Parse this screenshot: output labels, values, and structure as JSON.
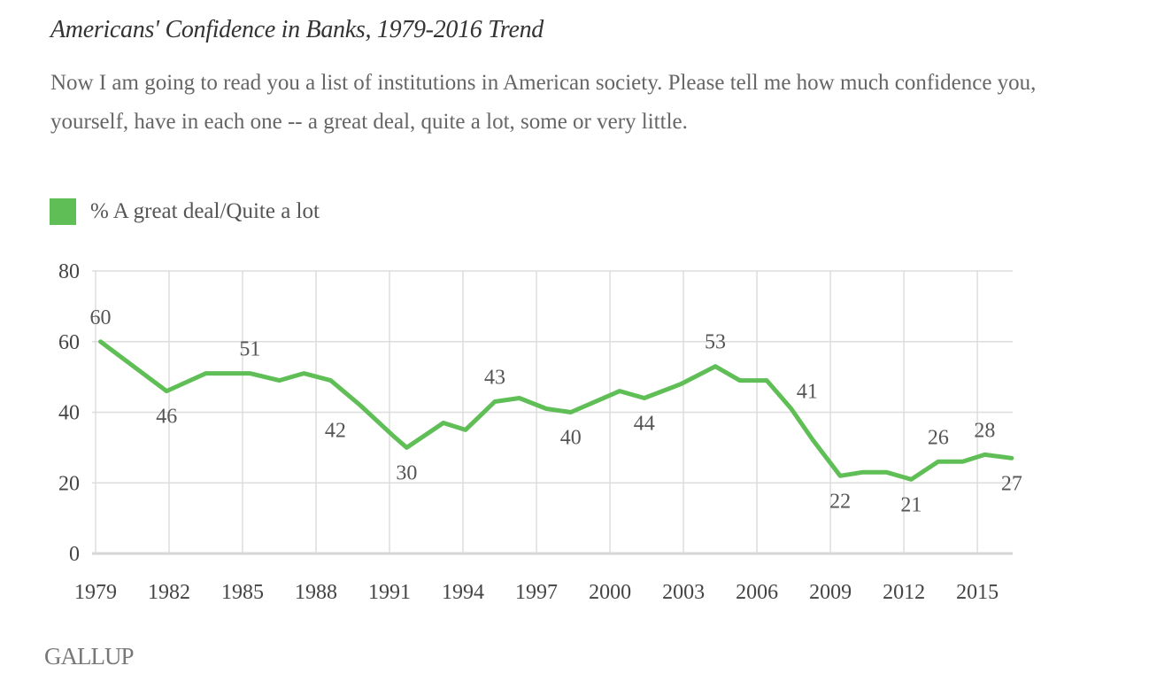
{
  "header": {
    "title": "Americans' Confidence in Banks, 1979-2016 Trend",
    "subtitle": "Now I am going to read you a list of institutions in American society. Please tell me how much confidence you, yourself, have in each one -- a great deal, quite a lot, some or very little."
  },
  "legend": {
    "label": "% A great deal/Quite a lot",
    "color": "#5fbf56"
  },
  "footer": {
    "logo": "GALLUP"
  },
  "chart_data": {
    "type": "line",
    "title": "Americans' Confidence in Banks, 1979-2016 Trend",
    "xlabel": "",
    "ylabel": "",
    "xlim": [
      1979,
      2016.5
    ],
    "ylim": [
      0,
      80
    ],
    "grid": true,
    "legend_position": "top-left",
    "x_ticks": [
      1979,
      1982,
      1985,
      1988,
      1991,
      1994,
      1997,
      2000,
      2003,
      2006,
      2009,
      2012,
      2015
    ],
    "x_tick_labels": [
      "1979",
      "1982",
      "1985",
      "1988",
      "1991",
      "1994",
      "1997",
      "2000",
      "2003",
      "2006",
      "2009",
      "2012",
      "2015"
    ],
    "y_ticks": [
      0,
      20,
      40,
      60,
      80
    ],
    "y_tick_labels": [
      "0",
      "20",
      "40",
      "60",
      "80"
    ],
    "series": [
      {
        "name": "% A great deal/Quite a lot",
        "color": "#5fbf56",
        "x": [
          1979.2,
          1981.9,
          1983.5,
          1985.3,
          1986.5,
          1987.5,
          1988.6,
          1989.8,
          1991.2,
          1991.7,
          1993.2,
          1994.1,
          1995.3,
          1996.3,
          1997.4,
          1998.4,
          2000.4,
          2001.4,
          2002.9,
          2004.3,
          2005.3,
          2006.4,
          2007.4,
          2008.3,
          2009.4,
          2010.3,
          2011.3,
          2012.3,
          2013.4,
          2014.4,
          2015.3,
          2016.4
        ],
        "values": [
          60,
          46,
          51,
          51,
          49,
          51,
          49,
          42,
          33,
          30,
          37,
          35,
          43,
          44,
          41,
          40,
          46,
          44,
          48,
          53,
          49,
          49,
          41,
          32,
          22,
          23,
          23,
          21,
          26,
          26,
          28,
          27
        ]
      }
    ],
    "annotations": [
      {
        "text": "60",
        "x": 1979.2,
        "y": 60,
        "pos": "above"
      },
      {
        "text": "46",
        "x": 1981.9,
        "y": 46,
        "pos": "below"
      },
      {
        "text": "51",
        "x": 1985.3,
        "y": 51,
        "pos": "above"
      },
      {
        "text": "42",
        "x": 1989.8,
        "y": 42,
        "pos": "below-left"
      },
      {
        "text": "30",
        "x": 1991.7,
        "y": 30,
        "pos": "below"
      },
      {
        "text": "43",
        "x": 1995.3,
        "y": 43,
        "pos": "above"
      },
      {
        "text": "40",
        "x": 1998.4,
        "y": 40,
        "pos": "below"
      },
      {
        "text": "44",
        "x": 2001.4,
        "y": 44,
        "pos": "below"
      },
      {
        "text": "53",
        "x": 2004.3,
        "y": 53,
        "pos": "above"
      },
      {
        "text": "41",
        "x": 2007.4,
        "y": 41,
        "pos": "above-right"
      },
      {
        "text": "22",
        "x": 2009.4,
        "y": 22,
        "pos": "below"
      },
      {
        "text": "21",
        "x": 2012.3,
        "y": 21,
        "pos": "below"
      },
      {
        "text": "26",
        "x": 2013.4,
        "y": 26,
        "pos": "above"
      },
      {
        "text": "28",
        "x": 2015.3,
        "y": 28,
        "pos": "above"
      },
      {
        "text": "27",
        "x": 2016.4,
        "y": 27,
        "pos": "below"
      }
    ]
  }
}
